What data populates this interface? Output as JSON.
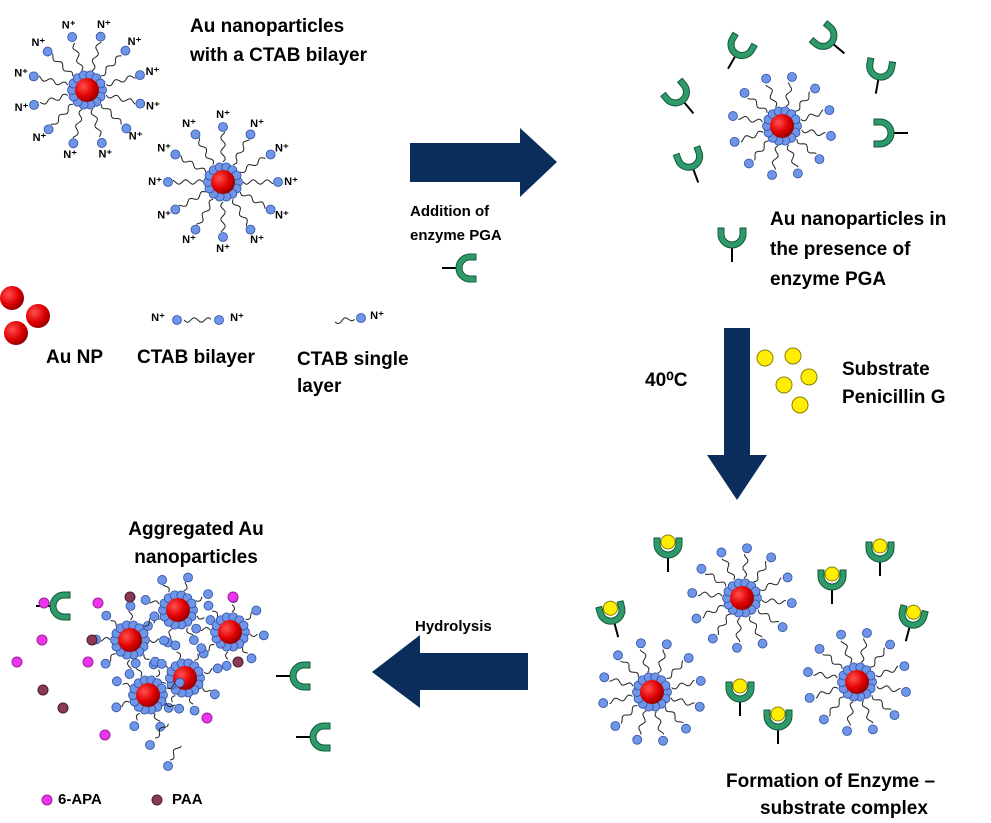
{
  "panels": {
    "initial": {
      "label_lines": [
        "Au nanoparticles",
        "with a CTAB bilayer"
      ]
    },
    "enzyme": {
      "label_lines": [
        "Au nanoparticles in",
        "the presence of",
        "enzyme PGA"
      ]
    },
    "complex": {
      "label_lines": [
        "Formation of Enzyme –",
        "substrate complex"
      ]
    },
    "aggregated": {
      "label_lines": [
        "Aggregated Au",
        "nanoparticles"
      ]
    }
  },
  "steps": {
    "addition": {
      "label_lines": [
        "Addition of",
        "enzyme PGA"
      ]
    },
    "heating": {
      "label": "40⁰C"
    },
    "substrate": {
      "label_lines": [
        "Substrate",
        "Penicillin G"
      ]
    },
    "hydrolysis": {
      "label": "Hydrolysis"
    }
  },
  "legend": {
    "au_np": "Au NP",
    "ctab_bilayer": "CTAB bilayer",
    "ctab_single_lines": [
      "CTAB single",
      "layer"
    ],
    "six_apa": "6-APA",
    "paa": "PAA"
  },
  "symbols": {
    "n_plus": "N⁺"
  }
}
